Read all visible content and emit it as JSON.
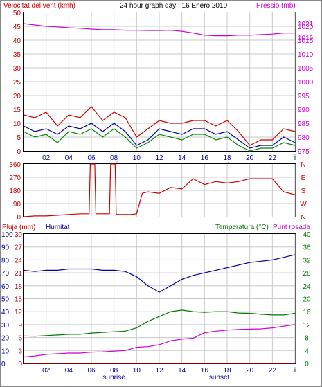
{
  "top": {
    "left_title": "Velocitat del vent (kmh)",
    "center_title": "24 hour graph day : 16 Enero 2010",
    "right_title": "Pressió (mb)"
  },
  "mid": {
    "compass": [
      "N",
      "W",
      "S",
      "E",
      "N"
    ]
  },
  "bottom": {
    "rain_title": "Pluja (mm)",
    "hum_title": "Humitat",
    "temp_title": "Temperatura (°C)",
    "dew_title": "Punt rosada"
  },
  "x_labels": [
    "02",
    "04",
    "06",
    "08",
    "10",
    "12",
    "14",
    "16",
    "18",
    "20",
    "22",
    "i"
  ],
  "sunrise_label": "sunrise",
  "sunset_label": "sunset",
  "colors": {
    "pressure": "#cc00cc",
    "gust": "#cc0000",
    "wind_avg": "#000099",
    "wind_green": "#008800",
    "direction": "#cc0000",
    "humidity": "#000099",
    "temperature": "#007700",
    "dewpoint": "#cc00cc",
    "rain": "#cc0000",
    "grid": "#c8c8c8",
    "left_axis": "#cc0000",
    "right_axis": "#cc00cc",
    "hum_axis": "#000099",
    "temp_axis": "#007700"
  },
  "chart_data": [
    {
      "type": "line",
      "name": "wind_pressure",
      "y_left": {
        "ticks": [
          0,
          5,
          10,
          15,
          20,
          25,
          30,
          35,
          40,
          45,
          50
        ],
        "range": [
          0,
          50
        ]
      },
      "y_right": {
        "ticks": [
          975,
          980,
          985,
          990,
          995,
          1000,
          1005,
          1010,
          1015,
          1016,
          1020,
          1021
        ],
        "range": [
          975,
          1025
        ]
      },
      "x_range": [
        0,
        24
      ],
      "pressure": {
        "x": [
          0,
          1,
          2,
          3,
          4,
          5,
          6,
          7,
          8,
          9,
          10,
          11,
          12,
          13,
          14,
          15,
          16,
          17,
          18,
          19,
          20,
          21,
          22,
          23,
          24
        ],
        "y": [
          1021,
          1020.5,
          1020,
          1019.8,
          1019.5,
          1019.3,
          1019,
          1018.8,
          1018.8,
          1018.6,
          1018.6,
          1018.5,
          1018.5,
          1018.6,
          1018.2,
          1017.6,
          1016.8,
          1016.6,
          1016.6,
          1016.8,
          1016.8,
          1017,
          1017.2,
          1017.6,
          1017.6
        ]
      },
      "gust": {
        "x": [
          0,
          1,
          2,
          3,
          4,
          5,
          6,
          7,
          8,
          9,
          10,
          11,
          12,
          13,
          14,
          15,
          16,
          17,
          18,
          19,
          20,
          21,
          22,
          23,
          24
        ],
        "y": [
          13,
          12,
          14,
          9,
          13,
          12,
          16,
          11,
          14,
          12,
          5,
          8,
          11,
          10,
          10,
          11,
          11,
          9,
          11,
          7,
          2,
          4,
          4,
          8,
          7
        ]
      },
      "wind_avg": {
        "x": [
          0,
          1,
          2,
          3,
          4,
          5,
          6,
          7,
          8,
          9,
          10,
          11,
          12,
          13,
          14,
          15,
          16,
          17,
          18,
          19,
          20,
          21,
          22,
          23,
          24
        ],
        "y": [
          9,
          7,
          8,
          6,
          9,
          8,
          10,
          7,
          10,
          7,
          2,
          4,
          8,
          7,
          6,
          8,
          8,
          6,
          7,
          4,
          1,
          2,
          2,
          5,
          3
        ]
      },
      "wind_green": {
        "x": [
          0,
          1,
          2,
          3,
          4,
          5,
          6,
          7,
          8,
          9,
          10,
          11,
          12,
          13,
          14,
          15,
          16,
          17,
          18,
          19,
          20,
          21,
          22,
          23,
          24
        ],
        "y": [
          7,
          5,
          6,
          3,
          7,
          6,
          8,
          5,
          8,
          5,
          1,
          3,
          6,
          5,
          4,
          6,
          6,
          4,
          5,
          2,
          0,
          1,
          1,
          3,
          2
        ]
      }
    },
    {
      "type": "line",
      "name": "wind_direction",
      "y_left": {
        "ticks": [
          0,
          90,
          180,
          270,
          360
        ],
        "range": [
          0,
          360
        ]
      },
      "x_range": [
        0,
        24
      ],
      "direction": {
        "x": [
          0,
          1,
          2,
          3,
          4,
          5,
          5.8,
          5.9,
          6.3,
          6.4,
          7.6,
          7.7,
          8.1,
          8.2,
          9.5,
          10,
          10.5,
          11,
          12,
          13,
          14,
          15,
          16,
          17,
          18,
          19,
          20,
          21,
          22,
          23,
          24
        ],
        "y": [
          0,
          5,
          5,
          10,
          15,
          20,
          20,
          360,
          360,
          20,
          20,
          360,
          360,
          15,
          15,
          20,
          160,
          170,
          160,
          200,
          190,
          260,
          220,
          240,
          230,
          240,
          260,
          260,
          260,
          170,
          150
        ]
      }
    },
    {
      "type": "line",
      "name": "temp_humidity",
      "y_rain": {
        "ticks": [
          0,
          3,
          6,
          9,
          12,
          15,
          18,
          21,
          24,
          27,
          30
        ],
        "range": [
          0,
          30
        ]
      },
      "y_humidity": {
        "ticks": [
          0,
          10,
          20,
          30,
          40,
          50,
          60,
          70,
          80,
          90,
          100
        ],
        "range": [
          0,
          100
        ]
      },
      "y_temp": {
        "ticks": [
          0,
          4,
          8,
          12,
          16,
          20,
          24,
          28,
          32,
          36,
          40
        ],
        "range": [
          0,
          40
        ]
      },
      "x_range": [
        0,
        24
      ],
      "humidity": {
        "x": [
          0,
          1,
          2,
          3,
          4,
          5,
          6,
          7,
          8,
          9,
          10,
          11,
          12,
          13,
          14,
          15,
          16,
          17,
          18,
          19,
          20,
          21,
          22,
          23,
          24
        ],
        "y": [
          72,
          71,
          72,
          72,
          73,
          73,
          73,
          72,
          72,
          71,
          67,
          60,
          55,
          60,
          65,
          68,
          70,
          72,
          74,
          76,
          78,
          79,
          80,
          82,
          84
        ]
      },
      "temperature": {
        "x": [
          0,
          1,
          2,
          3,
          4,
          5,
          6,
          7,
          8,
          9,
          10,
          11,
          12,
          13,
          14,
          15,
          16,
          17,
          18,
          19,
          20,
          21,
          22,
          23,
          24
        ],
        "y": [
          8.5,
          8.4,
          8.6,
          8.8,
          9,
          9,
          9.4,
          9.6,
          9.8,
          10,
          11,
          13,
          14.5,
          16,
          16.5,
          16,
          15.8,
          16,
          16,
          15.6,
          15.5,
          15.2,
          15,
          15,
          15.5
        ]
      },
      "dewpoint": {
        "x": [
          0,
          1,
          2,
          3,
          4,
          5,
          6,
          7,
          8,
          9,
          10,
          11,
          12,
          13,
          14,
          15,
          16,
          17,
          18,
          19,
          20,
          21,
          22,
          23,
          24
        ],
        "y": [
          2,
          2.3,
          2.8,
          3,
          3.2,
          3.2,
          3.5,
          3.6,
          3.8,
          4,
          5,
          5.2,
          5.8,
          7,
          7.5,
          7.8,
          9.5,
          10,
          10.3,
          10.5,
          10.6,
          10.7,
          11,
          11.5,
          12
        ]
      },
      "rain": {
        "x": [
          0,
          24
        ],
        "y": [
          0,
          0
        ]
      }
    }
  ]
}
